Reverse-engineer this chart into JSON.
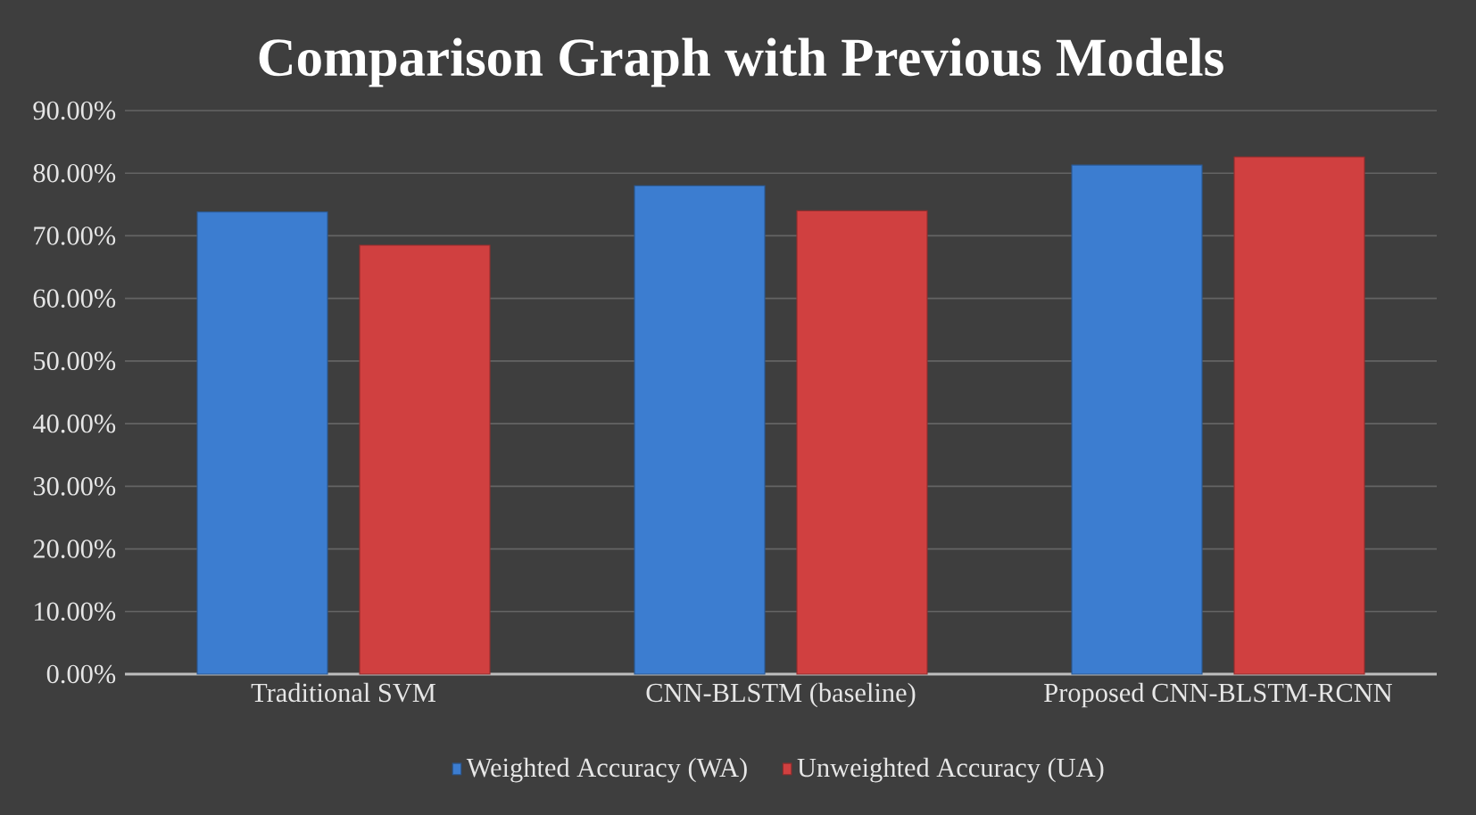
{
  "chart_data": {
    "type": "bar",
    "title": "Comparison Graph with Previous Models",
    "categories": [
      "Traditional SVM",
      "CNN-BLSTM (baseline)",
      "Proposed CNN-BLSTM-RCNN"
    ],
    "series": [
      {
        "name": "Weighted Accuracy (WA)",
        "color": "#3c7dd0",
        "values": [
          73.8,
          78.0,
          81.3
        ]
      },
      {
        "name": "Unweighted Accuracy (UA)",
        "color": "#d04040",
        "values": [
          68.5,
          74.0,
          82.6
        ]
      }
    ],
    "ylim": [
      0,
      90
    ],
    "yticks": [
      {
        "value": 0,
        "label": "0.00%"
      },
      {
        "value": 10,
        "label": "10.00%"
      },
      {
        "value": 20,
        "label": "20.00%"
      },
      {
        "value": 30,
        "label": "30.00%"
      },
      {
        "value": 40,
        "label": "40.00%"
      },
      {
        "value": 50,
        "label": "50.00%"
      },
      {
        "value": 60,
        "label": "60.00%"
      },
      {
        "value": 70,
        "label": "70.00%"
      },
      {
        "value": 80,
        "label": "80.00%"
      },
      {
        "value": 90,
        "label": "90.00%"
      }
    ],
    "grid": "y",
    "legend": "bottom"
  }
}
